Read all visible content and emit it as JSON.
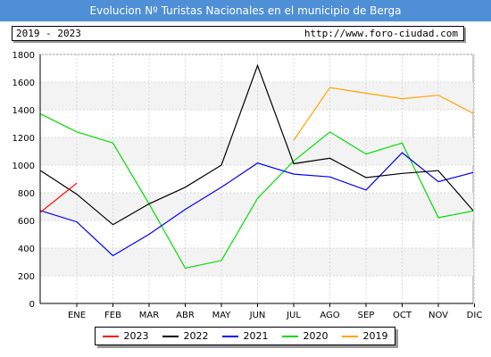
{
  "header": {
    "title": "Evolucion Nº Turistas Nacionales en el municipio de Berga",
    "range": "2019 - 2023",
    "url": "http://www.foro-ciudad.com"
  },
  "chart_data": {
    "type": "line",
    "categories": [
      "ENE",
      "FEB",
      "MAR",
      "ABR",
      "MAY",
      "JUN",
      "JUL",
      "AGO",
      "SEP",
      "OCT",
      "NOV",
      "DIC"
    ],
    "yticks": [
      "0",
      "200",
      "400",
      "600",
      "800",
      "1000",
      "1200",
      "1400",
      "1600",
      "1800"
    ],
    "ylim": [
      0,
      1800
    ],
    "grid": true,
    "legend_position": "bottom",
    "series": [
      {
        "name": "2023",
        "color": "#ff0000",
        "points": [
          [
            -1,
            660
          ],
          [
            0,
            870
          ]
        ]
      },
      {
        "name": "2022",
        "color": "#000000",
        "points": [
          [
            -1,
            960
          ],
          [
            0,
            790
          ],
          [
            1,
            570
          ],
          [
            2,
            720
          ],
          [
            3,
            840
          ],
          [
            4,
            1000
          ],
          [
            5,
            1720
          ],
          [
            6,
            1010
          ],
          [
            7,
            1050
          ],
          [
            8,
            910
          ],
          [
            9,
            940
          ],
          [
            10,
            960
          ],
          [
            11,
            660
          ]
        ]
      },
      {
        "name": "2021",
        "color": "#0000ff",
        "points": [
          [
            -1,
            670
          ],
          [
            0,
            590
          ],
          [
            1,
            345
          ],
          [
            2,
            500
          ],
          [
            3,
            680
          ],
          [
            4,
            840
          ],
          [
            5,
            1015
          ],
          [
            6,
            935
          ],
          [
            7,
            915
          ],
          [
            8,
            820
          ],
          [
            9,
            1090
          ],
          [
            10,
            880
          ],
          [
            11,
            950
          ]
        ]
      },
      {
        "name": "2020",
        "color": "#00dd00",
        "points": [
          [
            -1,
            1370
          ],
          [
            0,
            1240
          ],
          [
            1,
            1160
          ],
          [
            2,
            720
          ],
          [
            3,
            255
          ],
          [
            4,
            310
          ],
          [
            5,
            760
          ],
          [
            6,
            1030
          ],
          [
            7,
            1240
          ],
          [
            8,
            1080
          ],
          [
            9,
            1160
          ],
          [
            10,
            620
          ],
          [
            11,
            670
          ]
        ]
      },
      {
        "name": "2019",
        "color": "#ffa500",
        "points": [
          [
            6,
            1180
          ],
          [
            7,
            1560
          ],
          [
            8,
            1520
          ],
          [
            9,
            1480
          ],
          [
            10,
            1505
          ],
          [
            11,
            1370
          ]
        ]
      }
    ]
  }
}
